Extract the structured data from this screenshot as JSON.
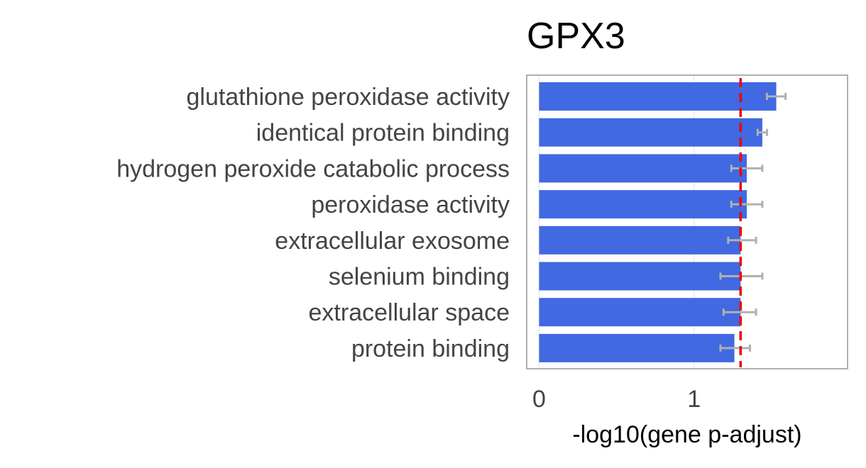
{
  "chart_data": {
    "type": "bar",
    "orientation": "horizontal",
    "title": "GPX3",
    "xlabel": "-log10(gene p-adjust)",
    "ylabel": "",
    "categories": [
      "glutathione peroxidase activity",
      "identical protein binding",
      "hydrogen peroxide catabolic process",
      "peroxidase activity",
      "extracellular exosome",
      "selenium binding",
      "extracellular space",
      "protein binding"
    ],
    "values": [
      1.53,
      1.44,
      1.34,
      1.34,
      1.3,
      1.3,
      1.3,
      1.26
    ],
    "error_low": [
      1.47,
      1.41,
      1.24,
      1.24,
      1.22,
      1.17,
      1.19,
      1.17
    ],
    "error_high": [
      1.59,
      1.47,
      1.44,
      1.44,
      1.4,
      1.44,
      1.4,
      1.36
    ],
    "threshold": 1.3,
    "xlim": [
      -0.08,
      1.99
    ],
    "xticks": [
      0,
      1
    ],
    "grid": true,
    "colors": {
      "bar": "#4169E1",
      "error": "#b0b0b0",
      "threshold": "#ee0000",
      "frame": "#b0b0b0",
      "grid": "#ebebeb"
    }
  }
}
